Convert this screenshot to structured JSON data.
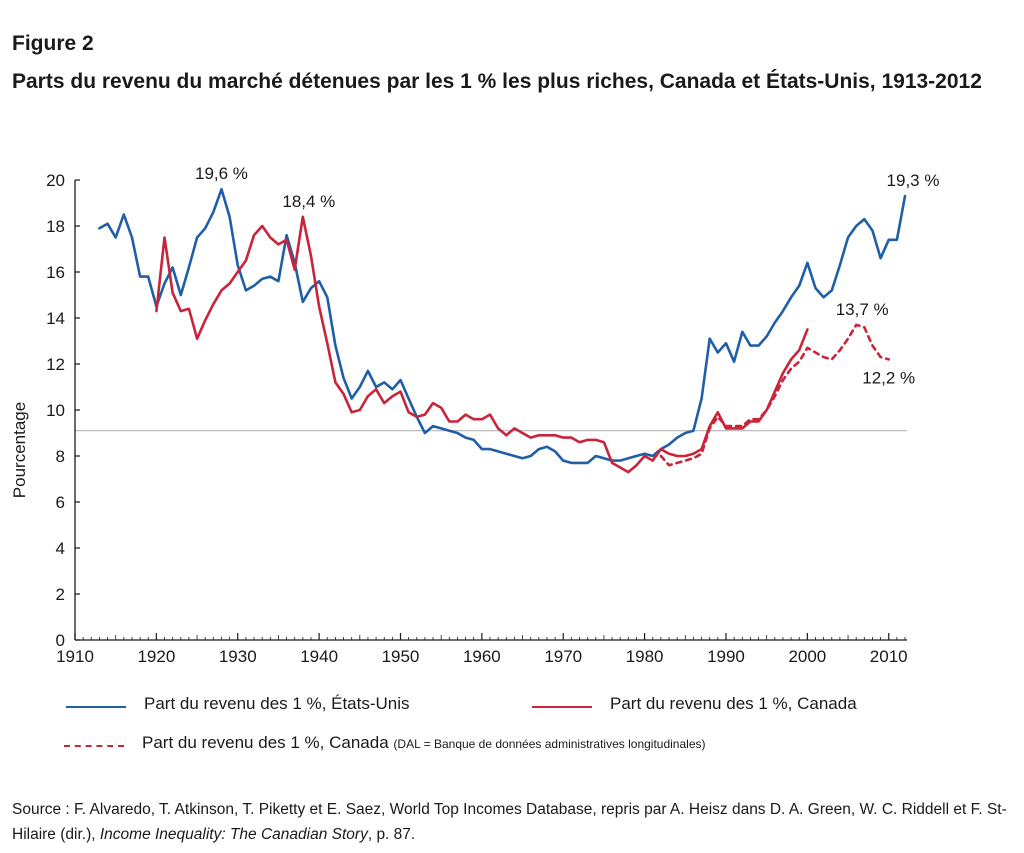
{
  "figure_label": "Figure 2",
  "title": "Parts du revenu du marché détenues par les 1 % les plus riches, Canada et États-Unis, 1913-2012",
  "legend": {
    "us": "Part du revenu des 1 %, États-Unis",
    "canada": "Part du revenu des 1 %, Canada",
    "canada_dal": "Part du revenu des 1 %, Canada",
    "canada_dal_note": "(DAL = Banque de données administratives longitudinales)"
  },
  "source": {
    "prefix": "Source : F. Alvaredo, T. Atkinson, T. Piketty et E. Saez, World Top Incomes Database, repris par A. Heisz dans D. A. Green, W. C. Riddell et F. St-Hilaire (dir.), ",
    "book": "Income Inequality: The Canadian Story",
    "suffix": ", p. 87."
  },
  "colors": {
    "us": "#1f5fa8",
    "canada": "#c8243a",
    "refline": "#b5b5b5",
    "axis": "#1a1a1a"
  },
  "chart_data": {
    "type": "line",
    "title": "Parts du revenu du marché détenues par les 1 % les plus riches, Canada et États-Unis, 1913-2012",
    "xlabel": "",
    "ylabel": "Pourcentage",
    "xlim": [
      1910,
      2012
    ],
    "ylim": [
      0,
      20
    ],
    "xticks": [
      1910,
      1920,
      1930,
      1940,
      1950,
      1960,
      1970,
      1980,
      1990,
      2000,
      2010
    ],
    "yticks": [
      0,
      2,
      4,
      6,
      8,
      10,
      12,
      14,
      16,
      18,
      20
    ],
    "reference_line_y": 9.1,
    "series": [
      {
        "name": "Part du revenu des 1 %, États-Unis",
        "color": "#1f5fa8",
        "style": "solid",
        "x": [
          1913,
          1914,
          1915,
          1916,
          1917,
          1918,
          1919,
          1920,
          1921,
          1922,
          1923,
          1924,
          1925,
          1926,
          1927,
          1928,
          1929,
          1930,
          1931,
          1932,
          1933,
          1934,
          1935,
          1936,
          1937,
          1938,
          1939,
          1940,
          1941,
          1942,
          1943,
          1944,
          1945,
          1946,
          1947,
          1948,
          1949,
          1950,
          1951,
          1952,
          1953,
          1954,
          1955,
          1956,
          1957,
          1958,
          1959,
          1960,
          1961,
          1962,
          1963,
          1964,
          1965,
          1966,
          1967,
          1968,
          1969,
          1970,
          1971,
          1972,
          1973,
          1974,
          1975,
          1976,
          1977,
          1978,
          1979,
          1980,
          1981,
          1982,
          1983,
          1984,
          1985,
          1986,
          1987,
          1988,
          1989,
          1990,
          1991,
          1992,
          1993,
          1994,
          1995,
          1996,
          1997,
          1998,
          1999,
          2000,
          2001,
          2002,
          2003,
          2004,
          2005,
          2006,
          2007,
          2008,
          2009,
          2010,
          2011,
          2012
        ],
        "values": [
          17.9,
          18.1,
          17.5,
          18.5,
          17.5,
          15.8,
          15.8,
          14.5,
          15.5,
          16.2,
          15.0,
          16.2,
          17.5,
          17.9,
          18.6,
          19.6,
          18.4,
          16.3,
          15.2,
          15.4,
          15.7,
          15.8,
          15.6,
          17.6,
          16.4,
          14.7,
          15.3,
          15.6,
          14.9,
          12.8,
          11.4,
          10.5,
          11.0,
          11.7,
          11.0,
          11.2,
          10.9,
          11.3,
          10.5,
          9.7,
          9.0,
          9.3,
          9.2,
          9.1,
          9.0,
          8.8,
          8.7,
          8.3,
          8.3,
          8.2,
          8.1,
          8.0,
          7.9,
          8.0,
          8.3,
          8.4,
          8.2,
          7.8,
          7.7,
          7.7,
          7.7,
          8.0,
          7.9,
          7.8,
          7.8,
          7.9,
          8.0,
          8.1,
          8.0,
          8.3,
          8.5,
          8.8,
          9.0,
          9.1,
          10.5,
          13.1,
          12.5,
          12.9,
          12.1,
          13.4,
          12.8,
          12.8,
          13.2,
          13.8,
          14.3,
          14.9,
          15.4,
          16.4,
          15.3,
          14.9,
          15.2,
          16.3,
          17.5,
          18.0,
          18.3,
          17.8,
          16.6,
          17.4,
          17.4,
          19.3
        ]
      },
      {
        "name": "Part du revenu des 1 %, Canada",
        "color": "#c8243a",
        "style": "solid",
        "x": [
          1920,
          1921,
          1922,
          1923,
          1924,
          1925,
          1926,
          1927,
          1928,
          1929,
          1930,
          1931,
          1932,
          1933,
          1934,
          1935,
          1936,
          1937,
          1938,
          1939,
          1940,
          1941,
          1942,
          1943,
          1944,
          1945,
          1946,
          1947,
          1948,
          1949,
          1950,
          1951,
          1952,
          1953,
          1954,
          1955,
          1956,
          1957,
          1958,
          1959,
          1960,
          1961,
          1962,
          1963,
          1964,
          1965,
          1966,
          1967,
          1968,
          1969,
          1970,
          1971,
          1972,
          1973,
          1974,
          1975,
          1976,
          1977,
          1978,
          1979,
          1980,
          1981,
          1982,
          1983,
          1984,
          1985,
          1986,
          1987,
          1988,
          1989,
          1990,
          1991,
          1992,
          1993,
          1994,
          1995,
          1996,
          1997,
          1998,
          1999,
          2000
        ],
        "values": [
          14.3,
          17.5,
          15.1,
          14.3,
          14.4,
          13.1,
          13.9,
          14.6,
          15.2,
          15.5,
          16.0,
          16.5,
          17.6,
          18.0,
          17.5,
          17.2,
          17.4,
          16.1,
          18.4,
          16.7,
          14.5,
          12.9,
          11.2,
          10.7,
          9.9,
          10.0,
          10.6,
          10.9,
          10.3,
          10.6,
          10.8,
          9.9,
          9.7,
          9.8,
          10.3,
          10.1,
          9.5,
          9.5,
          9.8,
          9.6,
          9.6,
          9.8,
          9.2,
          8.9,
          9.2,
          9.0,
          8.8,
          8.9,
          8.9,
          8.9,
          8.8,
          8.8,
          8.6,
          8.7,
          8.7,
          8.6,
          7.7,
          7.5,
          7.3,
          7.6,
          8.0,
          7.8,
          8.3,
          8.1,
          8.0,
          8.0,
          8.1,
          8.3,
          9.3,
          9.9,
          9.2,
          9.2,
          9.2,
          9.5,
          9.5,
          10.0,
          10.8,
          11.6,
          12.2,
          12.6,
          13.5
        ]
      },
      {
        "name": "Part du revenu des 1 %, Canada (DAL = Banque de données administratives longitudinales)",
        "color": "#c8243a",
        "style": "dashed",
        "x": [
          1982,
          1983,
          1984,
          1985,
          1986,
          1987,
          1988,
          1989,
          1990,
          1991,
          1992,
          1993,
          1994,
          1995,
          1996,
          1997,
          1998,
          1999,
          2000,
          2001,
          2002,
          2003,
          2004,
          2005,
          2006,
          2007,
          2008,
          2009,
          2010
        ],
        "values": [
          8.0,
          7.6,
          7.7,
          7.8,
          7.9,
          8.1,
          9.2,
          9.7,
          9.3,
          9.3,
          9.3,
          9.6,
          9.6,
          10.0,
          10.6,
          11.3,
          11.8,
          12.1,
          12.7,
          12.5,
          12.3,
          12.2,
          12.6,
          13.1,
          13.7,
          13.6,
          12.8,
          12.3,
          12.2
        ]
      }
    ],
    "annotations": [
      {
        "text": "19,6 %",
        "x": 1928,
        "y": 19.6
      },
      {
        "text": "18,4 %",
        "x": 1938,
        "y": 18.4
      },
      {
        "text": "19,3 %",
        "x": 2012,
        "y": 19.3
      },
      {
        "text": "13,7 %",
        "x": 2006,
        "y": 13.7
      },
      {
        "text": "12,2 %",
        "x": 2010,
        "y": 12.2
      }
    ]
  }
}
